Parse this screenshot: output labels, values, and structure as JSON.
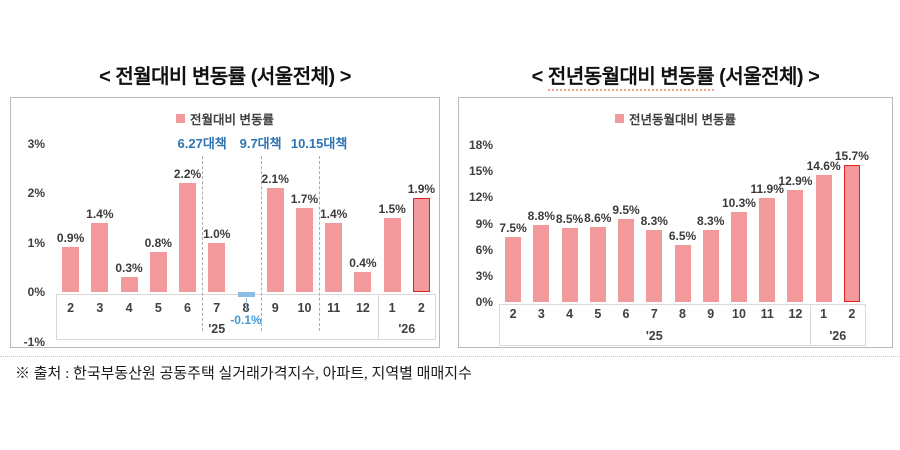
{
  "chart_data": [
    {
      "type": "bar",
      "title": "< 전월대비 변동률 (서울전체) >",
      "legend": "전월대비 변동률",
      "categories": [
        "2",
        "3",
        "4",
        "5",
        "6",
        "7",
        "8",
        "9",
        "10",
        "11",
        "12",
        "1",
        "2"
      ],
      "values": [
        0.9,
        1.4,
        0.3,
        0.8,
        2.2,
        1.0,
        -0.1,
        2.1,
        1.7,
        1.4,
        0.4,
        1.5,
        1.9
      ],
      "labels": [
        "0.9%",
        "1.4%",
        "0.3%",
        "0.8%",
        "2.2%",
        "1.0%",
        "-0.1%",
        "2.1%",
        "1.7%",
        "1.4%",
        "0.4%",
        "1.5%",
        "1.9%"
      ],
      "xlabel": "",
      "ylabel": "",
      "ylim": [
        -1,
        3
      ],
      "ytick_step": 1,
      "ytick_suffix": "%",
      "grid": false,
      "legend_position": "top-center",
      "year_groups": [
        {
          "label": "'25",
          "span": 11
        },
        {
          "label": "'26",
          "span": 2
        }
      ],
      "annotations": [
        {
          "label": "6.27대책",
          "after_category_index": 4
        },
        {
          "label": "9.7대책",
          "after_category_index": 6
        },
        {
          "label": "10.15대책",
          "after_category_index": 8
        }
      ],
      "highlight_last_bar": true,
      "bar_color": "#F2999C",
      "negative_bar_color": "#8FBCE4",
      "negative_label_color": "#3E9BD5",
      "highlight_border_color": "#E02424",
      "annotation_color": "#2E74B5"
    },
    {
      "type": "bar",
      "title": "< 전년동월대비 변동률 (서울전체) >",
      "title_prefix": "< ",
      "title_underlined": "전년동월대비 변동률",
      "title_suffix": " (서울전체) >",
      "legend": "전년동월대비 변동률",
      "categories": [
        "2",
        "3",
        "4",
        "5",
        "6",
        "7",
        "8",
        "9",
        "10",
        "11",
        "12",
        "1",
        "2"
      ],
      "values": [
        7.5,
        8.8,
        8.5,
        8.6,
        9.5,
        8.3,
        6.5,
        8.3,
        10.3,
        11.9,
        12.9,
        14.6,
        15.7
      ],
      "labels": [
        "7.5%",
        "8.8%",
        "8.5%",
        "8.6%",
        "9.5%",
        "8.3%",
        "6.5%",
        "8.3%",
        "10.3%",
        "11.9%",
        "12.9%",
        "14.6%",
        "15.7%"
      ],
      "xlabel": "",
      "ylabel": "",
      "ylim": [
        0,
        18
      ],
      "ytick_step": 3,
      "ytick_suffix": "%",
      "grid": false,
      "legend_position": "top-center",
      "year_groups": [
        {
          "label": "'25",
          "span": 11
        },
        {
          "label": "'26",
          "span": 2
        }
      ],
      "annotations": [],
      "highlight_last_bar": true,
      "bar_color": "#F2999C",
      "negative_bar_color": "#8FBCE4",
      "negative_label_color": "#3E9BD5",
      "highlight_border_color": "#E02424",
      "annotation_color": "#2E74B5"
    }
  ],
  "footer": {
    "source_note": "※ 출처 : 한국부동산원 공동주택 실거래가격지수, 아파트, 지역별 매매지수"
  }
}
